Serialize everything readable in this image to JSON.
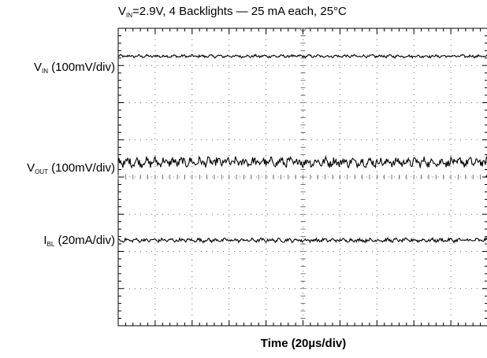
{
  "chart_data": {
    "type": "line",
    "title_pre": "V",
    "title_sub": "IN",
    "title_post": "=2.9V, 4 Backlights — 25 mA each, 25°C",
    "xlabel": "Time (20µs/div)",
    "grid": true,
    "grid_divisions": {
      "x": 10,
      "y": 8
    },
    "xlim": [
      0,
      10
    ],
    "ylim": [
      0,
      8
    ],
    "series": [
      {
        "label_pre": "V",
        "label_sub": "IN",
        "label_post": " (100mV/div)",
        "level": 7.25,
        "noise": 0.03,
        "color": "#000000"
      },
      {
        "label_pre": "V",
        "label_sub": "OUT",
        "label_post": " (100mV/div)",
        "level": 4.4,
        "noise": 0.1,
        "color": "#000000"
      },
      {
        "label_pre": "I",
        "label_sub": "BL",
        "label_post": " (20mA/div)",
        "level": 2.3,
        "noise": 0.04,
        "color": "#000000"
      }
    ]
  }
}
